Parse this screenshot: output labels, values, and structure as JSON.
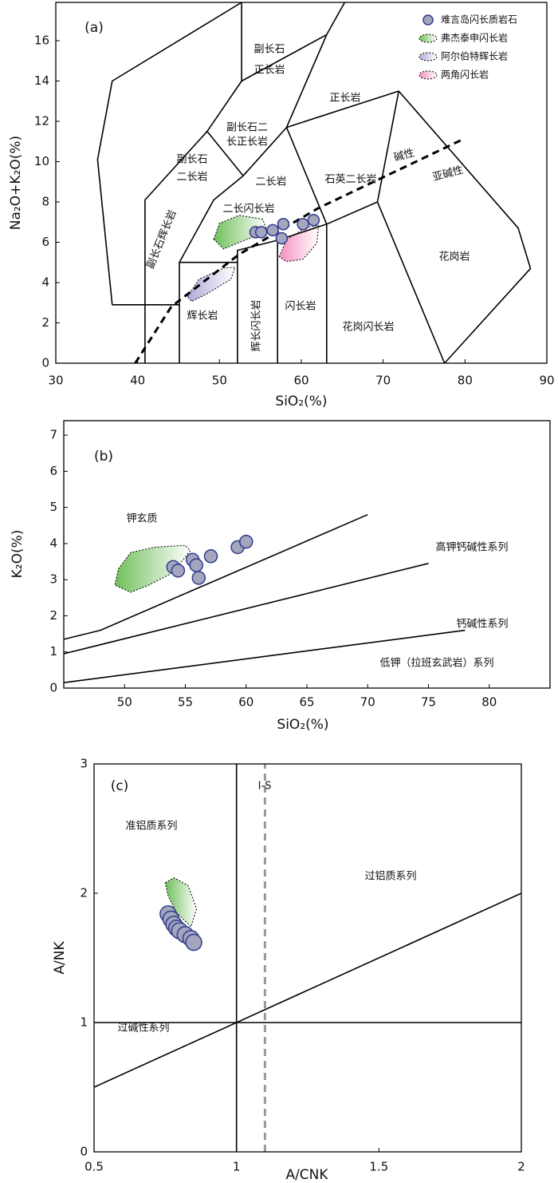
{
  "chart_data": [
    {
      "type": "scatter",
      "panel_label": "(a)",
      "x_label": "SiO₂(%)",
      "y_label": "Na₂O+K₂O(%)",
      "xlim": [
        30,
        90
      ],
      "ylim": [
        0,
        17.9
      ],
      "xticks": [
        30,
        40,
        50,
        60,
        70,
        80,
        90
      ],
      "yticks": [
        0,
        2,
        4,
        6,
        8,
        10,
        12,
        14,
        16
      ],
      "legend": "upper right",
      "series": [
        {
          "name": "难言岛闪长质岩石",
          "color": "#a3a6bd",
          "x": [
            54.4,
            55.1,
            56.5,
            57.8,
            57.6,
            60.2,
            61.5
          ],
          "y": [
            6.5,
            6.5,
            6.6,
            6.9,
            6.2,
            6.9,
            7.1
          ]
        }
      ],
      "fields": [
        {
          "name": "弗杰泰申闪长岩",
          "color": "#6fbf5a",
          "x": [
            49.3,
            50.0,
            52.4,
            55.3,
            55.8,
            53.4,
            50.5
          ],
          "y": [
            6.15,
            6.94,
            7.34,
            7.14,
            6.55,
            6.15,
            5.67
          ]
        },
        {
          "name": "阿尔伯特辉长岩",
          "color": "#b3a9d9",
          "x": [
            46.1,
            47.5,
            50.5,
            51.9,
            51.4,
            48.5,
            46.6
          ],
          "y": [
            3.3,
            4.17,
            4.72,
            4.76,
            4.17,
            3.45,
            3.06
          ]
        },
        {
          "name": "两角闪长岩",
          "color": "#f58fc0",
          "x": [
            57.3,
            58.2,
            60.7,
            62.1,
            61.9,
            60.2,
            58.2
          ],
          "y": [
            5.28,
            6.15,
            6.75,
            6.83,
            5.95,
            5.16,
            5.04
          ]
        }
      ],
      "boundaries": [
        {
          "x": [
            36.9,
            35.1,
            36.9,
            52.7
          ],
          "y": [
            2.9,
            10.1,
            14.0,
            17.9
          ]
        },
        {
          "x": [
            36.9,
            45.1
          ],
          "y": [
            2.9,
            2.9
          ]
        },
        {
          "x": [
            52.7,
            52.7,
            63.1,
            65.3
          ],
          "y": [
            17.9,
            14.0,
            16.3,
            17.9
          ]
        },
        {
          "x": [
            52.7,
            48.5,
            52.9,
            58.2,
            63.1
          ],
          "y": [
            14.0,
            11.5,
            9.3,
            11.7,
            16.3
          ]
        },
        {
          "x": [
            58.2,
            71.9
          ],
          "y": [
            11.7,
            13.5
          ]
        },
        {
          "x": [
            71.9,
            86.5,
            88,
            77.5
          ],
          "y": [
            13.5,
            6.7,
            4.7,
            0
          ]
        },
        {
          "x": [
            71.9,
            69.3,
            77.5
          ],
          "y": [
            13.5,
            8.0,
            0
          ]
        },
        {
          "x": [
            40.9,
            40.9,
            48.5
          ],
          "y": [
            0,
            8.1,
            11.5
          ]
        },
        {
          "x": [
            45.1,
            45.1,
            52.2,
            52.2
          ],
          "y": [
            0,
            5.0,
            5.0,
            0
          ]
        },
        {
          "x": [
            45.1,
            49.3,
            52.9
          ],
          "y": [
            5.0,
            8.1,
            9.3
          ]
        },
        {
          "x": [
            52.2,
            52.2,
            57.1,
            63.1,
            69.3
          ],
          "y": [
            5.0,
            5.6,
            6.1,
            6.9,
            8.0
          ]
        },
        {
          "x": [
            57.1,
            57.1
          ],
          "y": [
            0,
            6.1
          ]
        },
        {
          "x": [
            63.1,
            63.1
          ],
          "y": [
            0,
            6.9
          ]
        },
        {
          "x": [
            58.2,
            63.1
          ],
          "y": [
            11.7,
            6.9
          ]
        }
      ],
      "divider": {
        "x": [
          39.7,
          44.1,
          52.4,
          62.1,
          79.7
        ],
        "y": [
          0,
          2.8,
          5.4,
          7.7,
          11.1
        ],
        "color": "#000000"
      },
      "region_labels": [
        [
          "副长石",
          "正长岩"
        ],
        "正长岩",
        [
          "副长石二",
          "长正长岩"
        ],
        [
          "副长石",
          "二长岩"
        ],
        "二长岩",
        "石英二长岩",
        "碱性",
        "亚碱性",
        "副长石辉长岩",
        "二长闪长岩",
        "花岗岩",
        "辉长岩",
        "辉长闪长岩",
        "闪长岩",
        "花岗闪长岩"
      ]
    },
    {
      "type": "scatter",
      "panel_label": "(b)",
      "x_label": "SiO₂(%)",
      "y_label": "K₂O(%)",
      "xlim": [
        45,
        85
      ],
      "ylim": [
        0,
        7.4
      ],
      "xticks": [
        50,
        55,
        60,
        65,
        70,
        75,
        80
      ],
      "yticks": [
        0,
        1,
        2,
        3,
        4,
        5,
        6,
        7
      ],
      "series": [
        {
          "color": "#a3a6bd",
          "x": [
            54,
            54.4,
            55.6,
            55.9,
            56.1,
            57.1,
            59.3,
            60
          ],
          "y": [
            3.35,
            3.25,
            3.55,
            3.4,
            3.05,
            3.65,
            3.9,
            4.05
          ]
        }
      ],
      "fields": [
        {
          "color": "#6fbf5a",
          "x": [
            49.5,
            50.5,
            52.5,
            55,
            55.4,
            54,
            52,
            50.5,
            49.2
          ],
          "y": [
            3.3,
            3.75,
            3.9,
            3.95,
            3.8,
            3.2,
            2.85,
            2.65,
            2.85
          ]
        }
      ],
      "boundaries": [
        {
          "x": [
            45,
            48,
            70
          ],
          "y": [
            1.35,
            1.6,
            4.8
          ]
        },
        {
          "x": [
            45,
            75
          ],
          "y": [
            0.95,
            3.45
          ]
        },
        {
          "x": [
            45,
            78
          ],
          "y": [
            0.15,
            1.6
          ]
        }
      ],
      "region_labels": [
        "钾玄质",
        "高钾钙碱性系列",
        "钙碱性系列",
        "低钾（拉班玄武岩）系列"
      ]
    },
    {
      "type": "scatter",
      "panel_label": "(c)",
      "x_label": "A/CNK",
      "y_label": "A/NK",
      "xlim": [
        0.5,
        2
      ],
      "ylim": [
        0,
        3
      ],
      "xticks": [
        0.5,
        1,
        1.5,
        2
      ],
      "yticks": [
        0,
        1,
        2,
        3
      ],
      "series": [
        {
          "color": "#a3a6bd",
          "x": [
            0.76,
            0.77,
            0.78,
            0.79,
            0.8,
            0.82,
            0.84,
            0.85
          ],
          "y": [
            1.84,
            1.8,
            1.76,
            1.73,
            1.71,
            1.68,
            1.65,
            1.62
          ]
        }
      ],
      "fields": [
        {
          "color": "#6fbf5a",
          "x": [
            0.75,
            0.78,
            0.83,
            0.86,
            0.84,
            0.79,
            0.76
          ],
          "y": [
            2.08,
            2.12,
            2.06,
            1.88,
            1.74,
            1.85,
            1.98
          ]
        }
      ],
      "boundaries": [
        {
          "x": [
            1,
            1
          ],
          "y": [
            0,
            3
          ]
        },
        {
          "x": [
            0.5,
            2
          ],
          "y": [
            1,
            1
          ]
        },
        {
          "x": [
            0.5,
            2
          ],
          "y": [
            0.5,
            2
          ]
        }
      ],
      "divider": {
        "x": [
          1.1,
          1.1
        ],
        "y": [
          0,
          3
        ],
        "color": "#999999"
      },
      "region_labels": [
        "I-S",
        "准铝质系列",
        "过铝质系列",
        "过碱性系列"
      ]
    }
  ]
}
